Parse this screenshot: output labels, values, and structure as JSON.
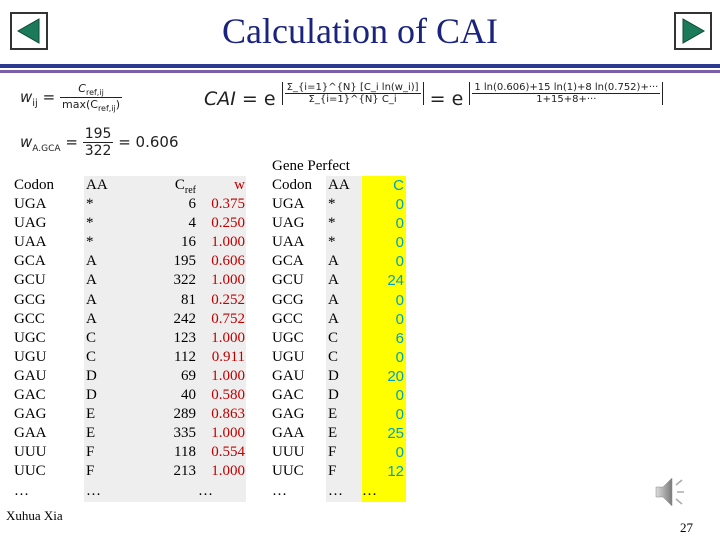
{
  "title": "Calculation of CAI",
  "nav": {
    "prev_icon": "triangle-left-icon",
    "next_icon": "triangle-right-icon",
    "accent": "#1b7a5a"
  },
  "formulas": {
    "w_ij": {
      "lhs": "w",
      "lhs_sub": "ij",
      "eq": "=",
      "num": "C",
      "num_sub": "ref,ij",
      "den": "max(C",
      "den_sub": "ref,ij",
      "den_close": ")"
    },
    "w_agca": {
      "lhs": "w",
      "lhs_sub": "A.GCA",
      "eq": "=",
      "num": "195",
      "den": "322",
      "result": "= 0.606"
    },
    "cai": {
      "lhs": "CAI",
      "eq1": "= e",
      "exp1_num": "Σ_{i=1}^{N} [C_i ln(w_i)]",
      "exp1_den": "Σ_{i=1}^{N} C_i",
      "eq2": "= e",
      "exp2_num": "1 ln(0.606)+15 ln(1)+8 ln(0.752)+···",
      "exp2_den": "1+15+8+···"
    }
  },
  "table_left": {
    "headers": {
      "codon": "Codon",
      "aa": "AA",
      "cref": "C",
      "cref_sub": "ref",
      "w": "w"
    },
    "rows": [
      {
        "codon": "UGA",
        "aa": "*",
        "cref": "6",
        "w": "0.375"
      },
      {
        "codon": "UAG",
        "aa": "*",
        "cref": "4",
        "w": "0.250"
      },
      {
        "codon": "UAA",
        "aa": "*",
        "cref": "16",
        "w": "1.000"
      },
      {
        "codon": "GCA",
        "aa": "A",
        "cref": "195",
        "w": "0.606"
      },
      {
        "codon": "GCU",
        "aa": "A",
        "cref": "322",
        "w": "1.000"
      },
      {
        "codon": "GCG",
        "aa": "A",
        "cref": "81",
        "w": "0.252"
      },
      {
        "codon": "GCC",
        "aa": "A",
        "cref": "242",
        "w": "0.752"
      },
      {
        "codon": "UGC",
        "aa": "C",
        "cref": "123",
        "w": "1.000"
      },
      {
        "codon": "UGU",
        "aa": "C",
        "cref": "112",
        "w": "0.911"
      },
      {
        "codon": "GAU",
        "aa": "D",
        "cref": "69",
        "w": "1.000"
      },
      {
        "codon": "GAC",
        "aa": "D",
        "cref": "40",
        "w": "0.580"
      },
      {
        "codon": "GAG",
        "aa": "E",
        "cref": "289",
        "w": "0.863"
      },
      {
        "codon": "GAA",
        "aa": "E",
        "cref": "335",
        "w": "1.000"
      },
      {
        "codon": "UUU",
        "aa": "F",
        "cref": "118",
        "w": "0.554"
      },
      {
        "codon": "UUC",
        "aa": "F",
        "cref": "213",
        "w": "1.000"
      }
    ],
    "ellipsis": "…",
    "ellipsis2": "…",
    "ellipsis3": "…"
  },
  "table_right": {
    "caption": "Gene Perfect",
    "headers": {
      "codon": "Codon",
      "aa": "AA",
      "c": "C"
    },
    "rows": [
      {
        "codon": "UGA",
        "aa": "*",
        "c": "0"
      },
      {
        "codon": "UAG",
        "aa": "*",
        "c": "0"
      },
      {
        "codon": "UAA",
        "aa": "*",
        "c": "0"
      },
      {
        "codon": "GCA",
        "aa": "A",
        "c": "0"
      },
      {
        "codon": "GCU",
        "aa": "A",
        "c": "24"
      },
      {
        "codon": "GCG",
        "aa": "A",
        "c": "0"
      },
      {
        "codon": "GCC",
        "aa": "A",
        "c": "0"
      },
      {
        "codon": "UGC",
        "aa": "C",
        "c": "6"
      },
      {
        "codon": "UGU",
        "aa": "C",
        "c": "0"
      },
      {
        "codon": "GAU",
        "aa": "D",
        "c": "20"
      },
      {
        "codon": "GAC",
        "aa": "D",
        "c": "0"
      },
      {
        "codon": "GAG",
        "aa": "E",
        "c": "0"
      },
      {
        "codon": "GAA",
        "aa": "E",
        "c": "25"
      },
      {
        "codon": "UUU",
        "aa": "F",
        "c": "0"
      },
      {
        "codon": "UUC",
        "aa": "F",
        "c": "12"
      }
    ],
    "ellipsis": "…",
    "ellipsis2": "…",
    "ellipsis3": "…"
  },
  "footer": {
    "author": "Xuhua Xia",
    "page": "27",
    "audio_icon": "speaker-icon"
  },
  "colors": {
    "title": "#1a237e",
    "w_values": "#c00000",
    "c_values": "#00a0c6",
    "highlight": "#ffff00",
    "table_bg": "#eeeeee",
    "rule_blue": "#2b3a8f",
    "rule_purple": "#7b5ea7"
  }
}
